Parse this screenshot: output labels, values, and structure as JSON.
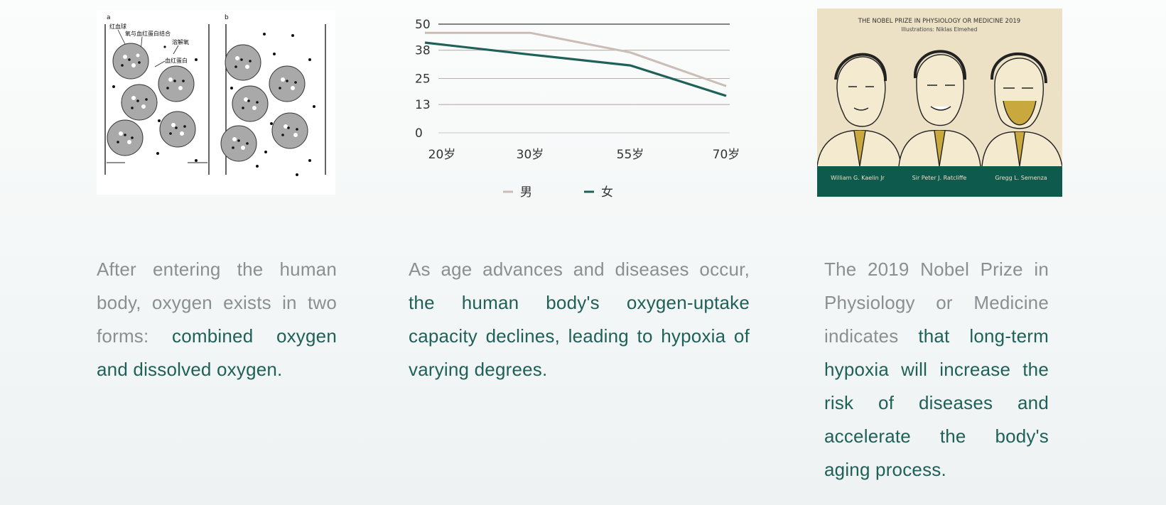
{
  "figure_a": {
    "panel_a_letter": "a",
    "panel_b_letter": "b",
    "labels": [
      "红血球",
      "氧与血红蛋白结合",
      "溶解氧",
      "血红蛋白"
    ]
  },
  "chart_data": {
    "type": "line",
    "categories": [
      "20岁",
      "30岁",
      "55岁",
      "70岁"
    ],
    "yticks": [
      0,
      13,
      25,
      38,
      50
    ],
    "ylim": [
      0,
      50
    ],
    "grid": true,
    "legend_position": "bottom",
    "series": [
      {
        "name": "男",
        "values": [
          46,
          46,
          37,
          21.5
        ],
        "color": "#c9bdb5"
      },
      {
        "name": "女",
        "values": [
          41.5,
          36,
          31,
          17
        ],
        "color": "#1f6158"
      }
    ]
  },
  "poster": {
    "title": "THE NOBEL PRIZE IN PHYSIOLOGY OR MEDICINE 2019",
    "credit": "Illustrations: Niklas Elmehed",
    "laureates": [
      "William G. Kaelin Jr",
      "Sir Peter J. Ratcliffe",
      "Gregg L. Semenza"
    ],
    "bg_color": "#ece1c4",
    "band_color": "#0e5a4c"
  },
  "captions": {
    "c1_plain": "After entering the human body, oxygen exists in two forms: ",
    "c1_hl": "combined oxygen and dissolved oxygen.",
    "c2_plain": "As age advances and diseases occur, ",
    "c2_hl": "the human body's oxygen-uptake capacity declines, leading to hypoxia of varying degrees.",
    "c3_plain": "The 2019 Nobel Prize in Physiology or Medicine indicates ",
    "c3_hl": "that long-term hypoxia will increase the risk of diseases and accelerate the body's aging process."
  },
  "colors": {
    "text_gray": "#8a8f92",
    "text_teal": "#1f6158"
  }
}
